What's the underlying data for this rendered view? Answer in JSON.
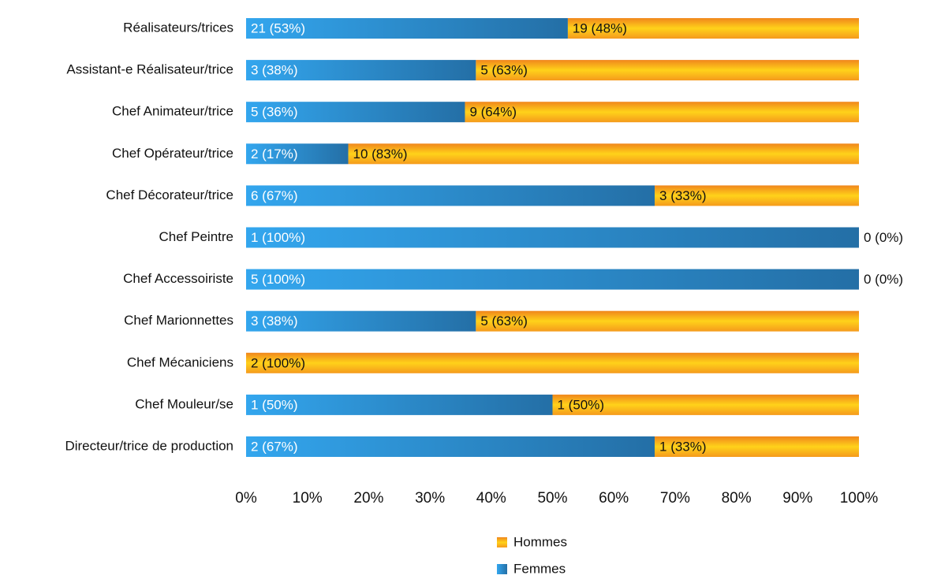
{
  "chart_data": {
    "type": "stacked-bar-100",
    "orientation": "horizontal",
    "categories": [
      "Réalisateurs/trices",
      "Assistant-e Réalisateur/trice",
      "Chef Animateur/trice",
      "Chef Opérateur/trice",
      "Chef Décorateur/trice",
      "Chef Peintre",
      "Chef Accessoiriste",
      "Chef Marionnettes",
      "Chef Mécaniciens",
      "Chef Mouleur/se",
      "Directeur/trice de production"
    ],
    "series": [
      {
        "name": "Femmes",
        "color": "#2a8fd6",
        "values": [
          52.5,
          37.5,
          35.71,
          16.67,
          66.67,
          100,
          100,
          37.5,
          0,
          50,
          66.67
        ],
        "value_labels": [
          "21 (53%)",
          "3 (38%)",
          "5 (36%)",
          "2 (17%)",
          "6 (67%)",
          "1 (100%)",
          "5 (100%)",
          "3 (38%)",
          null,
          "1 (50%)",
          "2 (67%)"
        ]
      },
      {
        "name": "Hommes",
        "color": "#f7a21b",
        "values": [
          47.5,
          62.5,
          64.29,
          83.33,
          33.33,
          0,
          0,
          62.5,
          100,
          50,
          33.33
        ],
        "value_labels": [
          "19 (48%)",
          "5 (63%)",
          "9 (64%)",
          "10 (83%)",
          "3 (33%)",
          "0 (0%)",
          "0 (0%)",
          "5 (63%)",
          "2 (100%)",
          "1 (50%)",
          "1 (33%)"
        ]
      }
    ],
    "xlim": [
      0,
      100
    ],
    "xticks": [
      {
        "value": 0,
        "label": "0%"
      },
      {
        "value": 10,
        "label": "10%"
      },
      {
        "value": 20,
        "label": "20%"
      },
      {
        "value": 30,
        "label": "30%"
      },
      {
        "value": 40,
        "label": "40%"
      },
      {
        "value": 50,
        "label": "50%"
      },
      {
        "value": 60,
        "label": "60%"
      },
      {
        "value": 70,
        "label": "70%"
      },
      {
        "value": 80,
        "label": "80%"
      },
      {
        "value": 90,
        "label": "90%"
      },
      {
        "value": 100,
        "label": "100%"
      }
    ],
    "grid": false,
    "legend": "bottom"
  }
}
